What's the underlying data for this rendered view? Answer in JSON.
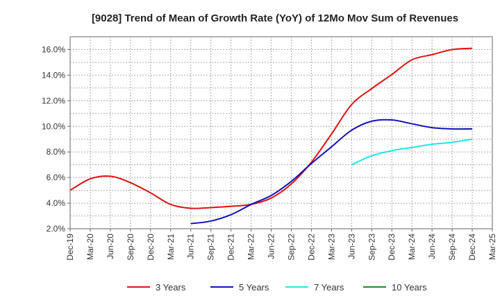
{
  "chart_data": {
    "type": "line",
    "title": "[9028]  Trend of Mean of Growth Rate (YoY) of 12Mo Mov Sum of Revenues",
    "xlabel": "",
    "ylabel": "",
    "x_ticks": [
      "Dec-19",
      "Mar-20",
      "Jun-20",
      "Sep-20",
      "Dec-20",
      "Mar-21",
      "Jun-21",
      "Sep-21",
      "Dec-21",
      "Mar-22",
      "Jun-22",
      "Sep-22",
      "Dec-22",
      "Mar-23",
      "Jun-23",
      "Sep-23",
      "Dec-23",
      "Mar-24",
      "Jun-24",
      "Sep-24",
      "Dec-24",
      "Mar-25"
    ],
    "y_ticks": [
      "2.0%",
      "4.0%",
      "6.0%",
      "8.0%",
      "10.0%",
      "12.0%",
      "14.0%",
      "16.0%"
    ],
    "ylim": [
      2.0,
      17.0
    ],
    "grid": true,
    "legend_position": "bottom",
    "series": [
      {
        "name": "3 Years",
        "color": "#dd1111",
        "x": [
          0,
          1,
          2,
          3,
          4,
          5,
          6,
          7,
          8,
          9,
          10,
          11,
          12,
          13,
          14,
          15,
          16,
          17,
          18,
          19,
          20
        ],
        "values": [
          5.0,
          5.9,
          6.1,
          5.6,
          4.8,
          3.9,
          3.6,
          3.65,
          3.75,
          3.9,
          4.4,
          5.5,
          7.2,
          9.4,
          11.7,
          12.95,
          14.05,
          15.2,
          15.6,
          16.0,
          16.1
        ]
      },
      {
        "name": "5 Years",
        "color": "#1111bb",
        "x": [
          6,
          7,
          8,
          9,
          10,
          11,
          12,
          13,
          14,
          15,
          16,
          17,
          18,
          19,
          20
        ],
        "values": [
          2.4,
          2.6,
          3.1,
          3.9,
          4.6,
          5.7,
          7.1,
          8.4,
          9.7,
          10.4,
          10.5,
          10.2,
          9.9,
          9.8,
          9.8
        ]
      },
      {
        "name": "7 Years",
        "color": "#22e5e5",
        "x": [
          14,
          15,
          16,
          17,
          18,
          19,
          20
        ],
        "values": [
          7.0,
          7.7,
          8.1,
          8.35,
          8.6,
          8.75,
          9.0
        ]
      },
      {
        "name": "10 Years",
        "color": "#228822",
        "x": [],
        "values": []
      }
    ]
  }
}
